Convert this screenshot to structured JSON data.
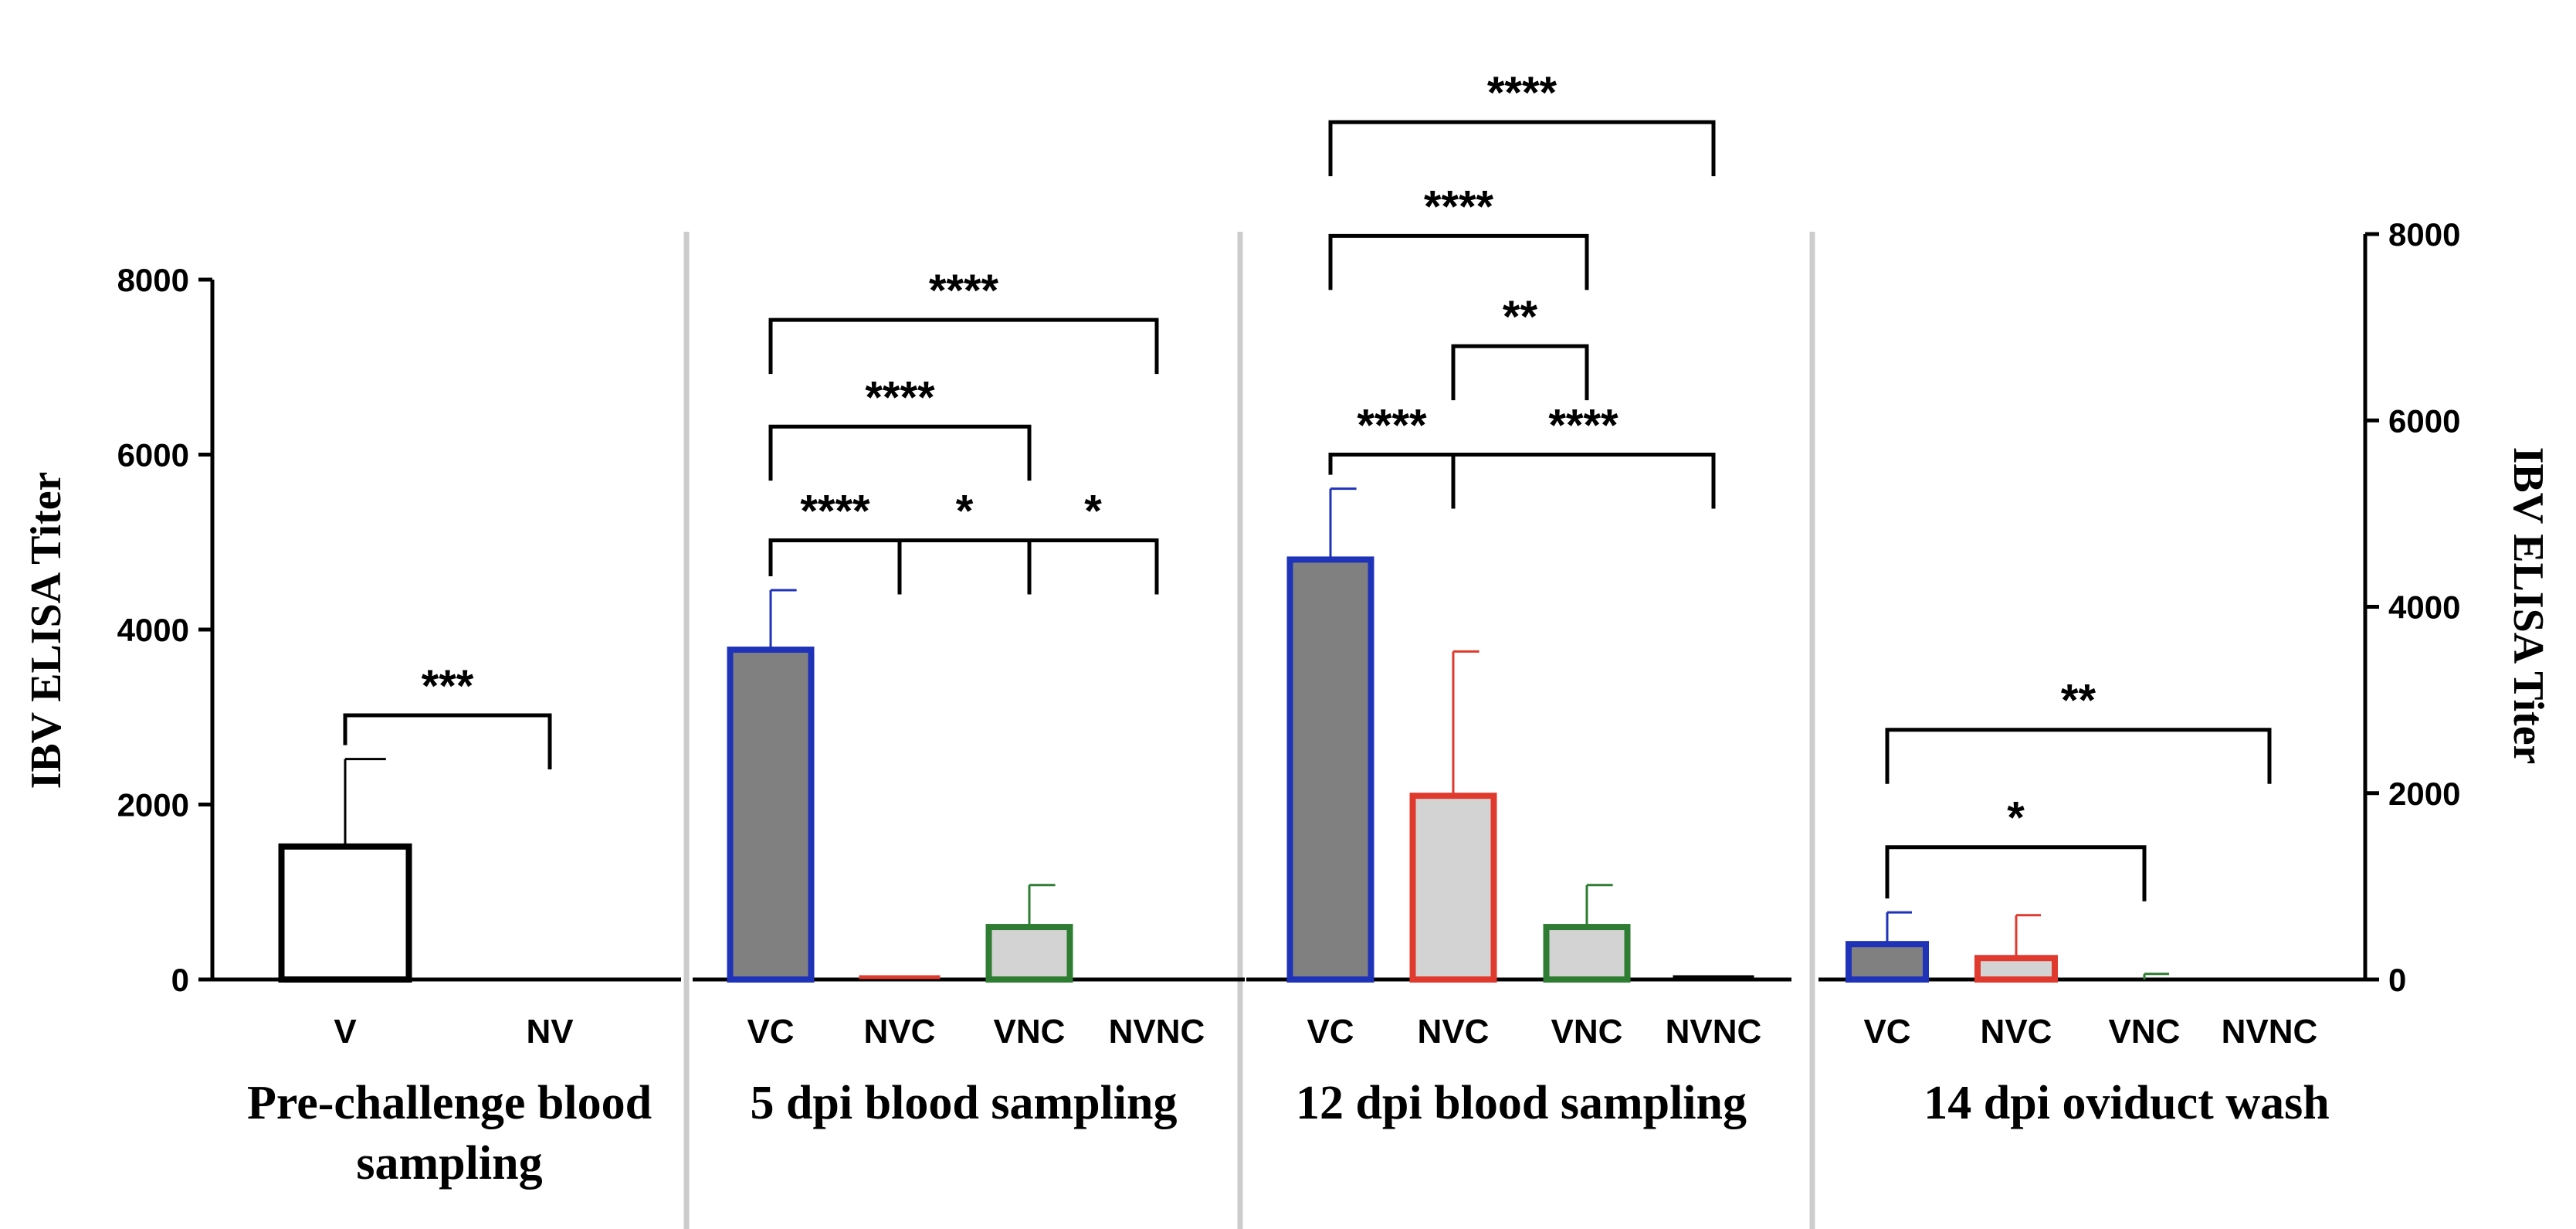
{
  "chart_data": {
    "type": "bar",
    "ylabel_left": "IBV ELISA Titer",
    "ylabel_right": "IBV ELISA Titer",
    "left_axis": {
      "ylim": [
        0,
        8000
      ],
      "ticks": [
        0,
        2000,
        4000,
        6000,
        8000
      ]
    },
    "right_axis": {
      "ylim": [
        0,
        8000
      ],
      "ticks": [
        0,
        2000,
        4000,
        6000,
        8000
      ]
    },
    "panels": [
      {
        "label": "Pre-challenge blood sampling",
        "label_lines": [
          "Pre-challenge blood",
          "sampling"
        ],
        "axis": "left",
        "categories": [
          "V",
          "NV"
        ],
        "bars": [
          {
            "category": "V",
            "value": 1520,
            "error": 1000,
            "edge_color": "#000000",
            "fill_color": "#ffffff"
          },
          {
            "category": "NV",
            "value": 0,
            "error": 0,
            "edge_color": "#000000",
            "fill_color": "#ffffff"
          }
        ],
        "significance": [
          {
            "from": 0,
            "to": 1,
            "label": "***",
            "y": 3020
          }
        ]
      },
      {
        "label": "5 dpi blood sampling",
        "label_lines": [
          "5 dpi blood sampling"
        ],
        "axis": "left",
        "categories": [
          "VC",
          "NVC",
          "VNC",
          "NVNC"
        ],
        "bars": [
          {
            "category": "VC",
            "value": 3770,
            "error": 680,
            "edge_color": "#1f33b8",
            "fill_color": "#808080"
          },
          {
            "category": "NVC",
            "value": 30,
            "error": 0,
            "edge_color": "#e03a2f",
            "fill_color": "#d3d3d3"
          },
          {
            "category": "VNC",
            "value": 600,
            "error": 480,
            "edge_color": "#2e7d32",
            "fill_color": "#d3d3d3"
          },
          {
            "category": "NVNC",
            "value": 0,
            "error": 0,
            "edge_color": "#000000",
            "fill_color": "#d3d3d3"
          }
        ],
        "significance": [
          {
            "from": 0,
            "to": 1,
            "label": "****",
            "y": 5020
          },
          {
            "from": 1,
            "to": 2,
            "label": "*",
            "y": 5020
          },
          {
            "from": 2,
            "to": 3,
            "label": "*",
            "y": 5020
          },
          {
            "from": 0,
            "to": 2,
            "label": "****",
            "y": 6320
          },
          {
            "from": 0,
            "to": 3,
            "label": "****",
            "y": 7540
          }
        ]
      },
      {
        "label": "12 dpi blood sampling",
        "label_lines": [
          "12 dpi blood sampling"
        ],
        "axis": "left",
        "categories": [
          "VC",
          "NVC",
          "VNC",
          "NVNC"
        ],
        "bars": [
          {
            "category": "VC",
            "value": 4800,
            "error": 810,
            "edge_color": "#1f33b8",
            "fill_color": "#808080"
          },
          {
            "category": "NVC",
            "value": 2100,
            "error": 1650,
            "edge_color": "#e03a2f",
            "fill_color": "#d3d3d3"
          },
          {
            "category": "VNC",
            "value": 600,
            "error": 480,
            "edge_color": "#2e7d32",
            "fill_color": "#d3d3d3"
          },
          {
            "category": "NVNC",
            "value": 30,
            "error": 0,
            "edge_color": "#000000",
            "fill_color": "#d3d3d3"
          }
        ],
        "significance": [
          {
            "from": 0,
            "to": 1,
            "label": "****",
            "y": 6000
          },
          {
            "from": 1,
            "to": 3,
            "label": "****",
            "y": 6000
          },
          {
            "from": 1,
            "to": 2,
            "label": "**",
            "y": 7240
          },
          {
            "from": 0,
            "to": 2,
            "label": "****",
            "y": 8500
          },
          {
            "from": 0,
            "to": 3,
            "label": "****",
            "y": 9800
          }
        ]
      },
      {
        "label": "14 dpi oviduct wash",
        "label_lines": [
          "14 dpi oviduct wash"
        ],
        "axis": "right",
        "categories": [
          "VC",
          "NVC",
          "VNC",
          "NVNC"
        ],
        "bars": [
          {
            "category": "VC",
            "value": 380,
            "error": 340,
            "edge_color": "#1f33b8",
            "fill_color": "#808080"
          },
          {
            "category": "NVC",
            "value": 230,
            "error": 460,
            "edge_color": "#e03a2f",
            "fill_color": "#d3d3d3"
          },
          {
            "category": "VNC",
            "value": 0,
            "error": 60,
            "edge_color": "#2e7d32",
            "fill_color": "#d3d3d3"
          },
          {
            "category": "NVNC",
            "value": 0,
            "error": 0,
            "edge_color": "#000000",
            "fill_color": "#d3d3d3"
          }
        ],
        "significance": [
          {
            "from": 0,
            "to": 2,
            "label": "*",
            "y": 1420
          },
          {
            "from": 0,
            "to": 3,
            "label": "**",
            "y": 2680
          }
        ]
      }
    ]
  }
}
